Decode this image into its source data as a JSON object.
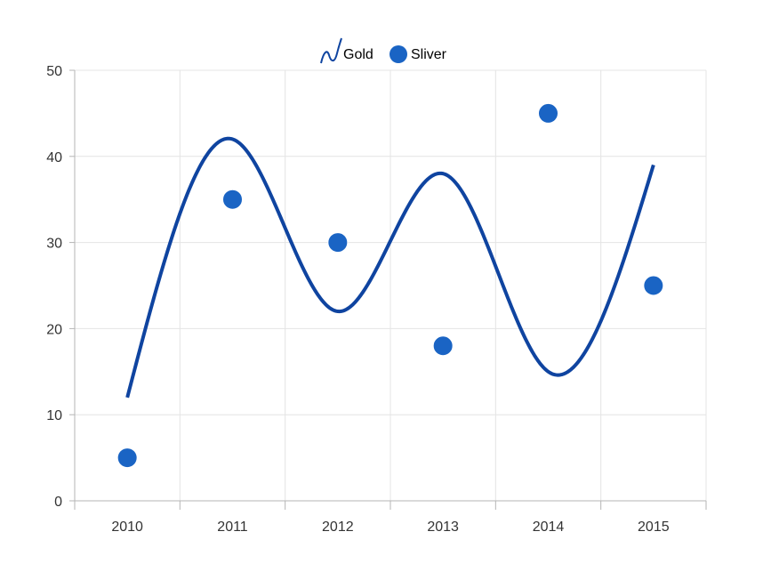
{
  "chart_data": {
    "type": "line",
    "title": "",
    "xlabel": "",
    "ylabel": "",
    "categories": [
      "2010",
      "2011",
      "2012",
      "2013",
      "2014",
      "2015"
    ],
    "ylim": [
      0,
      50
    ],
    "yticks": [
      0,
      10,
      20,
      30,
      40,
      50
    ],
    "grid": true,
    "legend_position": "top-center",
    "series": [
      {
        "name": "Gold",
        "type": "spline",
        "color": "#0F44A0",
        "values": [
          12,
          42,
          22,
          38,
          15,
          39
        ]
      },
      {
        "name": "Sliver",
        "type": "scatter",
        "color": "#1A64C4",
        "values": [
          5,
          35,
          30,
          18,
          45,
          25
        ]
      }
    ]
  }
}
